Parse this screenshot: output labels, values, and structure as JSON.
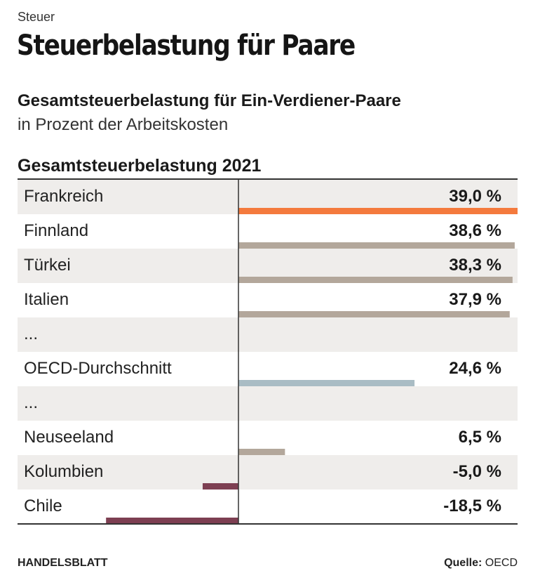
{
  "kicker": "Steuer",
  "title": "Steuerbelastung für Paare",
  "subtitle": "Gesamtsteuerbelastung für Ein-Verdiener-Paare",
  "unit_note": "in Prozent der Arbeitskosten",
  "column_title": "Gesamtsteuerbelastung 2021",
  "footer": {
    "brand": "HANDELSBLATT",
    "source_label": "Quelle:",
    "source_value": "OECD"
  },
  "colors": {
    "highlight": "#f47a3d",
    "default": "#b3a79b",
    "average": "#a9bcc4",
    "negative": "#7d3f52",
    "stripe": "#efedeb"
  },
  "chart_data": {
    "type": "bar",
    "orientation": "horizontal",
    "title": "Gesamtsteuerbelastung 2021",
    "unit": "%",
    "xlim": [
      -18.5,
      39.0
    ],
    "categories": [
      "Frankreich",
      "Finnland",
      "Türkei",
      "Italien",
      "...",
      "OECD-Durchschnitt",
      "...",
      "Neuseeland",
      "Kolumbien",
      "Chile"
    ],
    "values": [
      39.0,
      38.6,
      38.3,
      37.9,
      null,
      24.6,
      null,
      6.5,
      -5.0,
      -18.5
    ],
    "labels": [
      "39,0 %",
      "38,6 %",
      "38,3 %",
      "37,9 %",
      "",
      "24,6 %",
      "",
      "6,5 %",
      "-5,0 %",
      "-18,5 %"
    ],
    "bar_colors": [
      "highlight",
      "default",
      "default",
      "default",
      "",
      "average",
      "",
      "default",
      "negative",
      "negative"
    ]
  }
}
